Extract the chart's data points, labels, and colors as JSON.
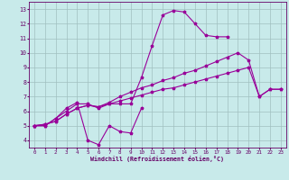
{
  "bg_color": "#c8eaea",
  "grid_color": "#a0c0c0",
  "line_color": "#990099",
  "xlabel": "Windchill (Refroidissement éolien,°C)",
  "curve1_x": [
    0,
    1,
    2,
    3,
    4,
    5,
    6,
    7,
    8,
    9,
    10
  ],
  "curve1_y": [
    5.0,
    5.0,
    5.5,
    6.2,
    6.6,
    4.0,
    3.7,
    5.0,
    4.6,
    4.5,
    6.2
  ],
  "curve2_x": [
    0,
    1,
    2,
    3,
    4,
    5,
    6,
    7,
    8,
    9,
    10,
    11,
    12,
    13,
    14,
    15,
    16,
    17,
    18
  ],
  "curve2_y": [
    5.0,
    5.0,
    5.5,
    6.0,
    6.5,
    6.5,
    6.2,
    6.5,
    6.5,
    6.5,
    8.3,
    10.5,
    12.6,
    12.9,
    12.8,
    12.0,
    11.2,
    11.1,
    11.1
  ],
  "curve3_x": [
    0,
    1,
    2,
    3,
    4,
    5,
    6,
    7,
    8,
    9,
    10,
    11,
    12,
    13,
    14,
    15,
    16,
    17,
    18,
    19,
    20,
    21,
    22,
    23
  ],
  "curve3_y": [
    5.0,
    5.1,
    5.3,
    5.8,
    6.2,
    6.4,
    6.3,
    6.5,
    6.7,
    6.9,
    7.1,
    7.3,
    7.5,
    7.6,
    7.8,
    8.0,
    8.2,
    8.4,
    8.6,
    8.8,
    9.0,
    7.0,
    7.5,
    7.5
  ],
  "curve4_x": [
    0,
    1,
    2,
    3,
    4,
    5,
    6,
    7,
    8,
    9,
    10,
    11,
    12,
    13,
    14,
    15,
    16,
    17,
    18,
    19,
    20,
    21,
    22,
    23
  ],
  "curve4_y": [
    5.0,
    5.1,
    5.3,
    5.8,
    6.2,
    6.4,
    6.3,
    6.6,
    7.0,
    7.3,
    7.6,
    7.8,
    8.1,
    8.3,
    8.6,
    8.8,
    9.1,
    9.4,
    9.7,
    10.0,
    9.5,
    7.0,
    7.5,
    7.5
  ],
  "xlim_min": -0.5,
  "xlim_max": 23.5,
  "ylim_min": 3.5,
  "ylim_max": 13.5,
  "xticks": [
    0,
    1,
    2,
    3,
    4,
    5,
    6,
    7,
    8,
    9,
    10,
    11,
    12,
    13,
    14,
    15,
    16,
    17,
    18,
    19,
    20,
    21,
    22,
    23
  ],
  "yticks": [
    4,
    5,
    6,
    7,
    8,
    9,
    10,
    11,
    12,
    13
  ]
}
